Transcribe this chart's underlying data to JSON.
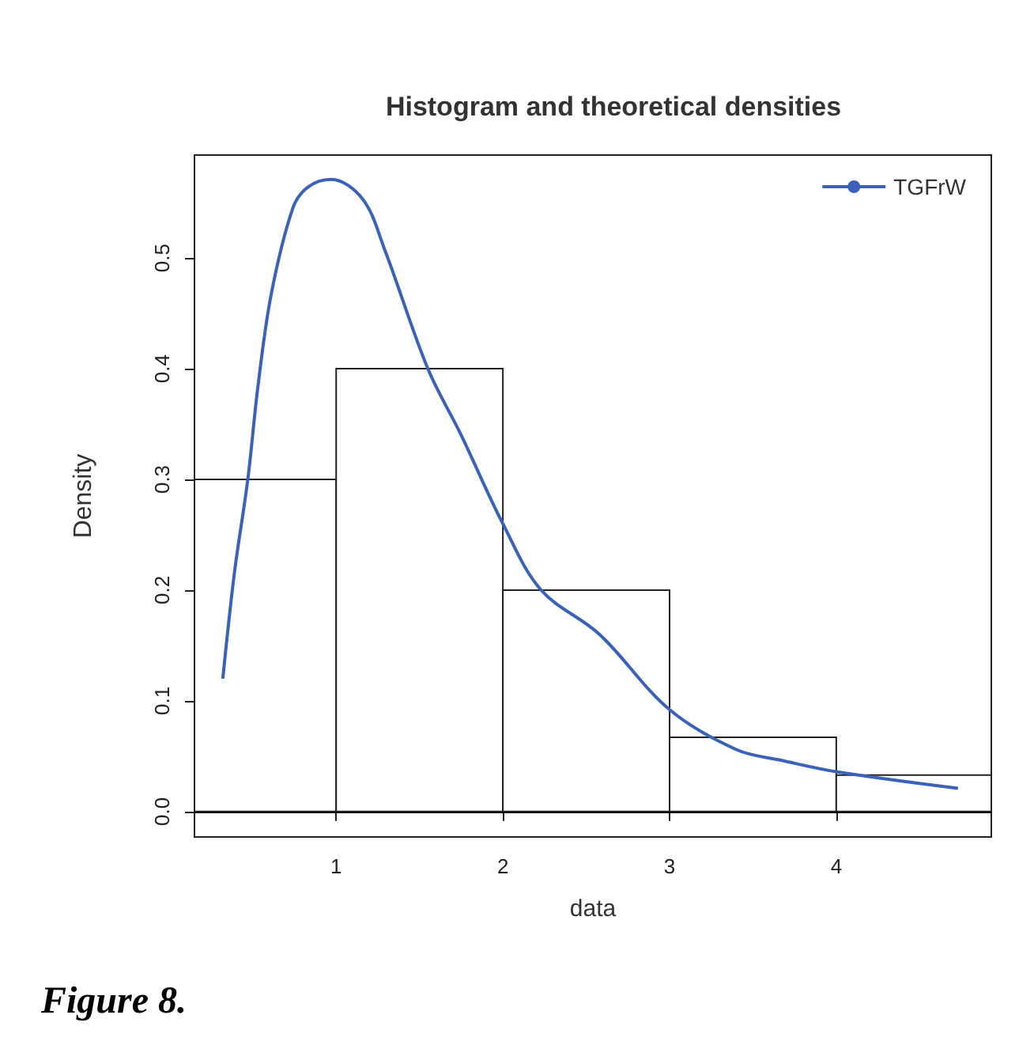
{
  "chart_data": {
    "type": "histogram",
    "title": "Histogram and theoretical densities",
    "xlabel": "data",
    "ylabel": "Density",
    "bins": [
      0.15,
      1,
      2,
      3,
      4,
      4.93
    ],
    "values": [
      0.3,
      0.4,
      0.2,
      0.067,
      0.033
    ],
    "color": "#ffffff",
    "series": [
      {
        "type": "line",
        "name": "TGFrW",
        "color": "#3a62b8",
        "x": [
          0.32,
          0.39,
          0.47,
          0.53,
          0.61,
          0.74,
          0.83,
          0.97,
          1.16,
          1.29,
          1.55,
          1.75,
          2.0,
          2.23,
          2.58,
          3.0,
          3.4,
          3.68,
          4.0,
          4.73
        ],
        "values": [
          0.12,
          0.216,
          0.3,
          0.383,
          0.467,
          0.545,
          0.564,
          0.571,
          0.553,
          0.508,
          0.4,
          0.34,
          0.26,
          0.2,
          0.16,
          0.092,
          0.056,
          0.046,
          0.036,
          0.021
        ]
      }
    ],
    "xlim": [
      0.15,
      4.93
    ],
    "ylim": [
      -0.023,
      0.593
    ],
    "xticks": [
      1,
      2,
      3,
      4
    ],
    "yticks": [
      {
        "value": 0,
        "label": "0.0"
      },
      {
        "value": 0.1,
        "label": "0.1"
      },
      {
        "value": 0.2,
        "label": "0.2"
      },
      {
        "value": 0.3,
        "label": "0.3"
      },
      {
        "value": 0.4,
        "label": "0.4"
      },
      {
        "value": 0.5,
        "label": "0.5"
      }
    ],
    "ref_lines": [
      {
        "axis": "y",
        "value": 0,
        "color": "#000000"
      }
    ],
    "legend": "top right",
    "grid": false,
    "marker": "none",
    "line_style": "solid",
    "annotations": [
      "Figure 8."
    ]
  }
}
